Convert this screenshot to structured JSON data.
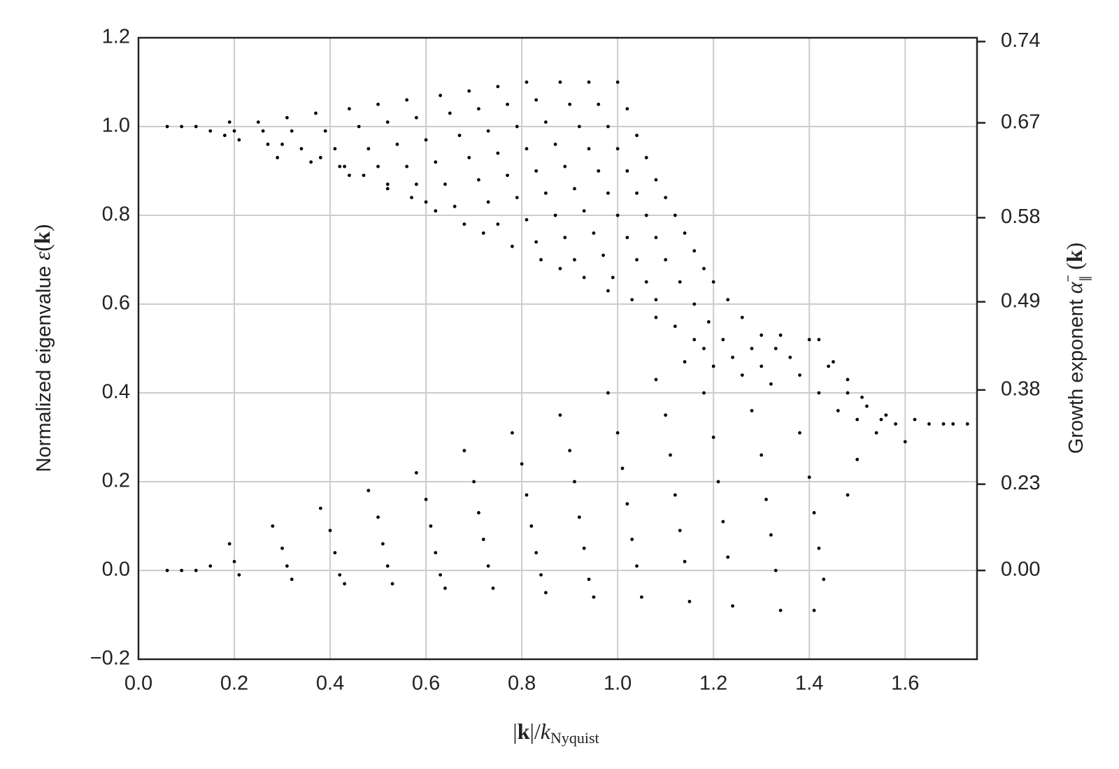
{
  "chart_data": {
    "type": "scatter",
    "xlabel": [
      "|",
      "k",
      "|/",
      "k",
      "Nyquist"
    ],
    "ylabel": [
      "Normalized eigenvalue ",
      "ε",
      "(",
      "k",
      ")"
    ],
    "y2label": [
      "Growth exponent ",
      "α",
      "−",
      "∥",
      " (",
      "k",
      ")"
    ],
    "xlim": [
      0,
      1.75
    ],
    "ylim": [
      -0.2,
      1.2
    ],
    "xticks": [
      {
        "value": 0,
        "label": "0.0"
      },
      0.2,
      0.4,
      0.6,
      0.8,
      {
        "value": 1,
        "label": "1.0"
      },
      1.2,
      1.4,
      1.6
    ],
    "yticks": [
      {
        "value": -0.2,
        "label": "−0.2"
      },
      {
        "value": 0,
        "label": "0.0"
      },
      0.2,
      0.4,
      0.6,
      0.8,
      {
        "value": 1,
        "label": "1.0"
      },
      1.2
    ],
    "y2scale": "quadratic",
    "y2ticks": [
      {
        "value": 0,
        "label": "0.00"
      },
      0.23,
      0.38,
      0.49,
      0.58,
      0.67,
      0.74
    ],
    "grid": true,
    "series": [
      {
        "color": "#000000",
        "x": [
          0.06,
          0.09,
          0.12,
          0.15,
          0.18,
          0.19,
          0.2,
          0.21,
          0.25,
          0.26,
          0.27,
          0.29,
          0.31,
          0.32,
          0.34,
          0.36,
          0.37,
          0.39,
          0.41,
          0.43,
          0.44
        ],
        "values": [
          1.0,
          1.0,
          1.0,
          0.99,
          0.98,
          1.01,
          0.99,
          0.97,
          1.01,
          0.99,
          0.96,
          0.93,
          1.02,
          0.99,
          0.95,
          0.92,
          1.03,
          0.99,
          0.95,
          0.91,
          0.89
        ]
      },
      {
        "color": "#000000",
        "x": [
          0.44,
          0.46,
          0.48,
          0.5,
          0.52,
          0.5,
          0.52,
          0.54,
          0.56,
          0.58,
          0.6,
          0.56,
          0.58,
          0.6,
          0.62,
          0.64,
          0.66,
          0.63,
          0.65,
          0.67,
          0.69,
          0.71,
          0.73,
          0.75
        ],
        "values": [
          1.04,
          1.0,
          0.95,
          0.91,
          0.87,
          1.05,
          1.01,
          0.96,
          0.91,
          0.87,
          0.83,
          1.06,
          1.02,
          0.97,
          0.92,
          0.87,
          0.82,
          1.07,
          1.03,
          0.98,
          0.93,
          0.88,
          0.83,
          0.78
        ]
      },
      {
        "color": "#000000",
        "x": [
          0.69,
          0.71,
          0.73,
          0.75,
          0.77,
          0.79,
          0.81,
          0.83,
          0.75,
          0.77,
          0.79,
          0.81,
          0.83,
          0.85,
          0.87,
          0.89,
          0.91,
          0.81,
          0.83,
          0.85,
          0.87,
          0.89,
          0.91,
          0.93,
          0.95,
          0.97,
          0.99
        ],
        "values": [
          1.08,
          1.04,
          0.99,
          0.94,
          0.89,
          0.84,
          0.79,
          0.74,
          1.09,
          1.05,
          1.0,
          0.95,
          0.9,
          0.85,
          0.8,
          0.75,
          0.7,
          1.1,
          1.06,
          1.01,
          0.96,
          0.91,
          0.86,
          0.81,
          0.76,
          0.71,
          0.66
        ]
      },
      {
        "color": "#000000",
        "x": [
          0.88,
          0.9,
          0.92,
          0.94,
          0.96,
          0.98,
          1.0,
          1.02,
          1.04,
          1.06,
          1.08,
          0.94,
          0.96,
          0.98,
          1.0,
          1.02,
          1.04,
          1.06,
          1.08,
          1.1,
          1.13,
          1.16,
          1.19,
          1.0,
          1.02,
          1.04,
          1.06,
          1.08,
          1.1,
          1.12,
          1.14,
          1.16,
          1.18,
          1.2,
          1.23,
          1.26,
          1.3,
          1.33
        ],
        "values": [
          1.1,
          1.05,
          1.0,
          0.95,
          0.9,
          0.85,
          0.8,
          0.75,
          0.7,
          0.65,
          0.61,
          1.1,
          1.05,
          1.0,
          0.95,
          0.9,
          0.85,
          0.8,
          0.75,
          0.7,
          0.65,
          0.6,
          0.56,
          1.1,
          1.04,
          0.98,
          0.93,
          0.88,
          0.84,
          0.8,
          0.76,
          0.72,
          0.68,
          0.65,
          0.61,
          0.57,
          0.53,
          0.5
        ]
      },
      {
        "color": "#000000",
        "x": [
          0.3,
          0.38,
          0.42,
          0.47,
          0.52,
          0.57,
          0.62,
          0.68,
          0.72,
          0.78,
          0.84,
          0.88,
          0.93,
          0.98,
          1.03,
          1.08,
          1.12,
          1.16
        ],
        "values": [
          0.96,
          0.93,
          0.91,
          0.89,
          0.86,
          0.84,
          0.81,
          0.78,
          0.76,
          0.73,
          0.7,
          0.68,
          0.66,
          0.63,
          0.61,
          0.57,
          0.55,
          0.52
        ]
      },
      {
        "color": "#000000",
        "x": [
          1.14,
          1.18,
          1.2,
          1.22,
          1.24,
          1.26,
          1.28,
          1.3,
          1.32,
          1.34,
          1.36,
          1.38,
          1.4,
          1.42,
          1.44,
          1.46,
          1.48,
          1.5,
          1.52,
          1.54,
          1.56,
          1.58,
          1.6,
          1.62,
          1.65,
          1.68,
          1.7,
          1.73,
          1.42,
          1.45,
          1.48,
          1.51,
          1.55
        ],
        "values": [
          0.47,
          0.5,
          0.46,
          0.52,
          0.48,
          0.44,
          0.5,
          0.46,
          0.42,
          0.53,
          0.48,
          0.44,
          0.52,
          0.4,
          0.46,
          0.36,
          0.4,
          0.34,
          0.37,
          0.31,
          0.35,
          0.33,
          0.29,
          0.34,
          0.33,
          0.33,
          0.33,
          0.33,
          0.52,
          0.47,
          0.43,
          0.39,
          0.34
        ]
      },
      {
        "color": "#000000",
        "x": [
          0.06,
          0.09,
          0.12,
          0.15,
          0.19,
          0.2,
          0.21,
          0.28,
          0.3,
          0.31,
          0.32,
          0.38,
          0.4,
          0.41,
          0.42,
          0.43,
          0.48,
          0.5,
          0.51,
          0.52,
          0.53,
          0.58,
          0.6,
          0.61,
          0.62,
          0.63,
          0.64,
          0.68,
          0.7,
          0.71,
          0.72,
          0.73,
          0.74
        ],
        "values": [
          0,
          0,
          0,
          0.01,
          0.06,
          0.02,
          -0.01,
          0.1,
          0.05,
          0.01,
          -0.02,
          0.14,
          0.09,
          0.04,
          -0.01,
          -0.03,
          0.18,
          0.12,
          0.06,
          0.01,
          -0.03,
          0.22,
          0.16,
          0.1,
          0.04,
          -0.01,
          -0.04,
          0.27,
          0.2,
          0.13,
          0.07,
          0.01,
          -0.04
        ]
      },
      {
        "color": "#000000",
        "x": [
          0.78,
          0.8,
          0.81,
          0.82,
          0.83,
          0.84,
          0.85,
          0.88,
          0.9,
          0.91,
          0.92,
          0.93,
          0.94,
          0.95,
          0.98,
          1.0,
          1.01,
          1.02,
          1.03,
          1.04,
          1.05,
          1.08,
          1.1,
          1.11,
          1.12,
          1.13,
          1.14,
          1.15,
          1.18,
          1.2,
          1.21,
          1.22,
          1.23,
          1.24,
          1.28,
          1.3,
          1.31,
          1.32,
          1.33,
          1.34,
          1.38,
          1.4,
          1.41,
          1.42,
          1.43,
          1.41,
          1.5,
          1.48
        ],
        "values": [
          0.31,
          0.24,
          0.17,
          0.1,
          0.04,
          -0.01,
          -0.05,
          0.35,
          0.27,
          0.2,
          0.12,
          0.05,
          -0.02,
          -0.06,
          0.4,
          0.31,
          0.23,
          0.15,
          0.07,
          0.01,
          -0.06,
          0.43,
          0.35,
          0.26,
          0.17,
          0.09,
          0.02,
          -0.07,
          0.4,
          0.3,
          0.2,
          0.11,
          0.03,
          -0.08,
          0.36,
          0.26,
          0.16,
          0.08,
          0.0,
          -0.09,
          0.31,
          0.21,
          0.13,
          0.05,
          -0.02,
          -0.09,
          0.25,
          0.17
        ]
      }
    ]
  }
}
